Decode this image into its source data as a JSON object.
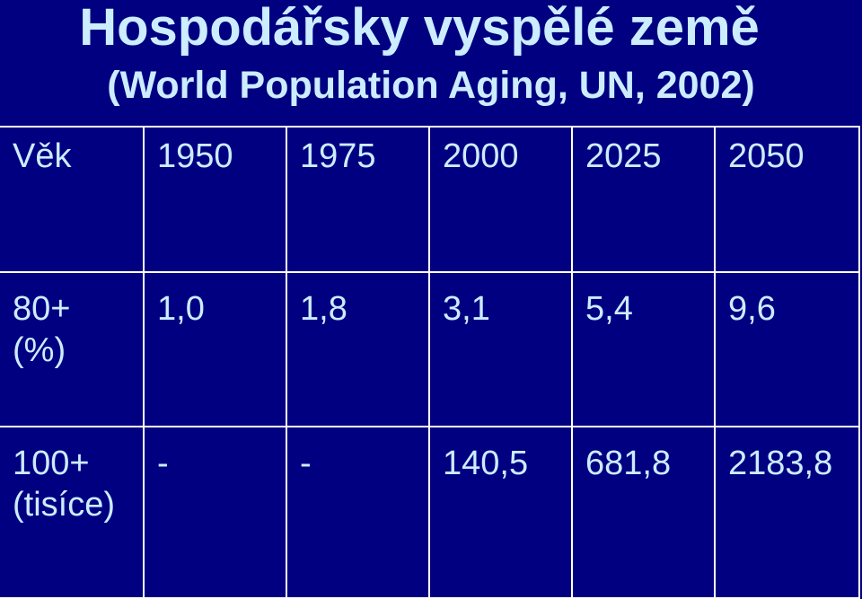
{
  "slide": {
    "title": "Hospodářsky vyspělé země",
    "subtitle": "(World Population Aging, UN, 2002)"
  },
  "colors": {
    "background": "#000080",
    "text": "#CCECFF",
    "grid_lines": "#FFFFFF"
  },
  "table": {
    "header": {
      "label": "Věk",
      "years": [
        "1950",
        "1975",
        "2000",
        "2025",
        "2050"
      ]
    },
    "rows": [
      {
        "label_line1": "80+",
        "label_line2": "(%)",
        "values": [
          "1,0",
          "1,8",
          "3,1",
          "5,4",
          "9,6"
        ]
      },
      {
        "label_line1": "100+",
        "label_line2": "(tisíce)",
        "values": [
          "-",
          "-",
          "140,5",
          "681,8",
          "2183,8"
        ]
      }
    ]
  }
}
